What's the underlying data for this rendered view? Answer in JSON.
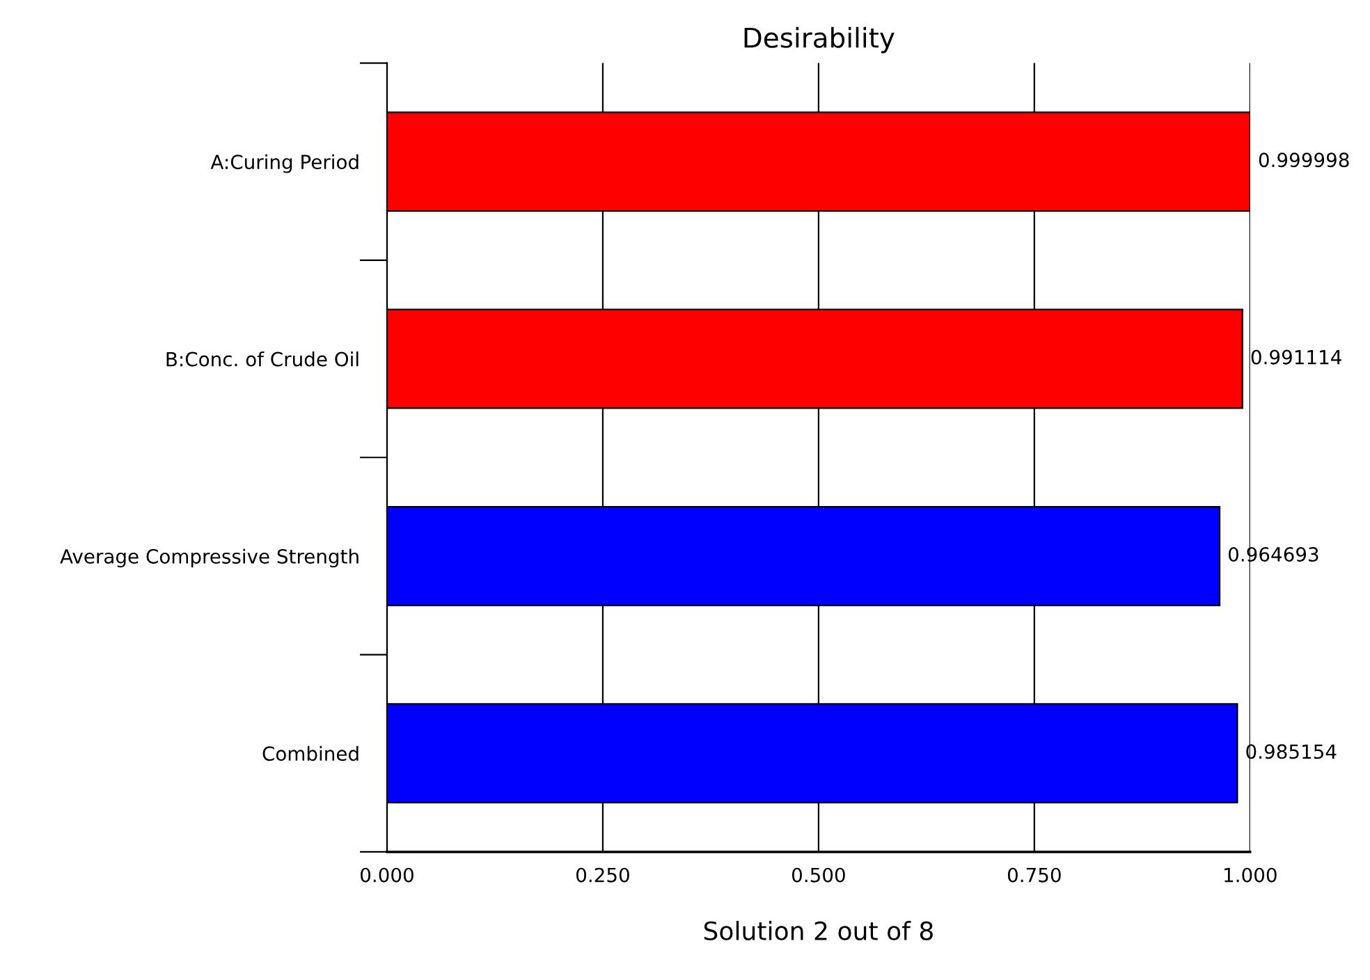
{
  "chart_data": {
    "type": "bar",
    "orientation": "horizontal",
    "title": "Desirability",
    "xlabel": "Solution 2 out of 8",
    "categories": [
      "A:Curing Period",
      "B:Conc. of Crude Oil",
      "Average Compressive Strength",
      "Combined"
    ],
    "values": [
      0.999998,
      0.991114,
      0.964693,
      0.985154
    ],
    "colors": [
      "#ff0000",
      "#ff0000",
      "#0000ff",
      "#0000ff"
    ],
    "xlim": [
      0,
      1
    ],
    "xticks": [
      {
        "value": 0,
        "label": "0.000"
      },
      {
        "value": 0.25,
        "label": "0.250"
      },
      {
        "value": 0.5,
        "label": "0.500"
      },
      {
        "value": 0.75,
        "label": "0.750"
      },
      {
        "value": 1,
        "label": "1.000"
      }
    ],
    "grid": "x",
    "data_labels": true
  }
}
